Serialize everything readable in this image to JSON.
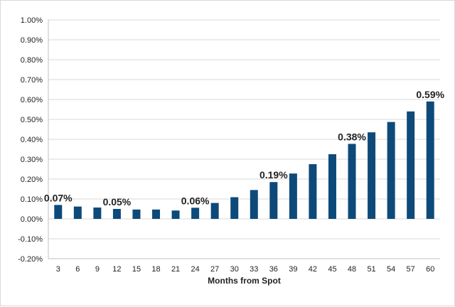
{
  "chart_data": {
    "type": "bar",
    "title": "",
    "xlabel": "Months from Spot",
    "ylabel": "",
    "categories": [
      "3",
      "6",
      "9",
      "12",
      "15",
      "18",
      "21",
      "24",
      "27",
      "30",
      "33",
      "36",
      "39",
      "42",
      "45",
      "48",
      "51",
      "54",
      "57",
      "60"
    ],
    "values": [
      0.07,
      0.062,
      0.057,
      0.05,
      0.047,
      0.047,
      0.042,
      0.056,
      0.08,
      0.109,
      0.145,
      0.185,
      0.228,
      0.275,
      0.325,
      0.377,
      0.435,
      0.487,
      0.54,
      0.59
    ],
    "value_unit": "%",
    "ylim": [
      -0.2,
      1.0
    ],
    "yticks": [
      {
        "v": 1.0,
        "label": "1.00%"
      },
      {
        "v": 0.9,
        "label": "0.90%"
      },
      {
        "v": 0.8,
        "label": "0.80%"
      },
      {
        "v": 0.7,
        "label": "0.70%"
      },
      {
        "v": 0.6,
        "label": "0.60%"
      },
      {
        "v": 0.5,
        "label": "0.50%"
      },
      {
        "v": 0.4,
        "label": "0.40%"
      },
      {
        "v": 0.3,
        "label": "0.30%"
      },
      {
        "v": 0.2,
        "label": "0.20%"
      },
      {
        "v": 0.1,
        "label": "0.10%"
      },
      {
        "v": 0.0,
        "label": "0.00%"
      },
      {
        "v": -0.1,
        "label": "-0.10%"
      },
      {
        "v": -0.2,
        "label": "-0.20%"
      }
    ],
    "data_labels": [
      {
        "category": "3",
        "text": "0.07%"
      },
      {
        "category": "12",
        "text": "0.05%"
      },
      {
        "category": "24",
        "text": "0.06%"
      },
      {
        "category": "36",
        "text": "0.19%"
      },
      {
        "category": "48",
        "text": "0.38%"
      },
      {
        "category": "60",
        "text": "0.59%"
      }
    ],
    "grid": true,
    "legend": "none",
    "bar_color": "#0d4a7a",
    "grid_color": "#d9d9d9"
  }
}
